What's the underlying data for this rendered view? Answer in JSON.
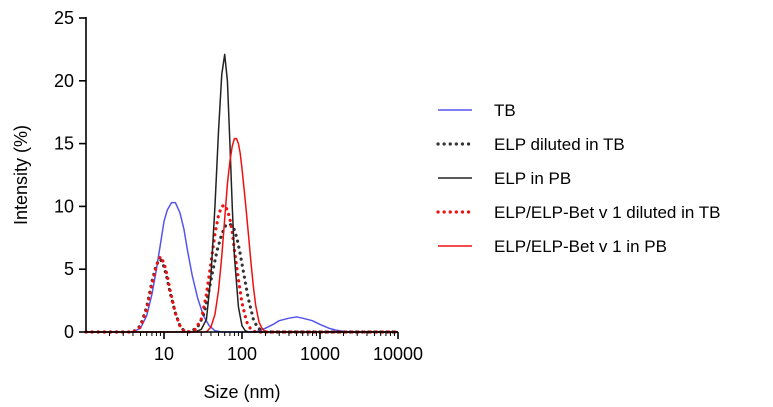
{
  "chart_data": {
    "type": "line",
    "xlabel": "Size (nm)",
    "ylabel": "Intensity (%)",
    "x_scale": "log",
    "xlim": [
      1,
      10000
    ],
    "ylim": [
      0,
      25
    ],
    "x_ticks": [
      10,
      100,
      1000,
      10000
    ],
    "x_tick_labels": [
      "10",
      "100",
      "1000",
      "10000"
    ],
    "y_ticks": [
      0,
      5,
      10,
      15,
      20,
      25
    ],
    "y_tick_labels": [
      "0",
      "5",
      "10",
      "15",
      "20",
      "25"
    ],
    "grid": false,
    "legend_position": "right",
    "series": [
      {
        "name": "TB",
        "color": "#5555ee",
        "style": "solid",
        "x": [
          1.0,
          4.0,
          5.0,
          6.0,
          7.0,
          8.0,
          9.0,
          10.0,
          11.0,
          12.5,
          14.0,
          16.0,
          18.0,
          20.0,
          23.0,
          27.0,
          32.0,
          38.0,
          45.0,
          55.0,
          100.0,
          150.0,
          200.0,
          250.0,
          300.0,
          400.0,
          500.0,
          600.0,
          800.0,
          1000.0,
          1300.0,
          1600.0,
          2000.0,
          2500.0,
          3500.0,
          10000.0
        ],
        "y": [
          0,
          0,
          0.3,
          1.3,
          3.0,
          5.0,
          7.0,
          8.8,
          9.7,
          10.3,
          10.3,
          9.5,
          8.2,
          6.5,
          4.5,
          2.7,
          1.3,
          0.5,
          0.1,
          0,
          0,
          0,
          0.3,
          0.6,
          0.9,
          1.1,
          1.2,
          1.1,
          0.9,
          0.6,
          0.3,
          0.15,
          0.05,
          0,
          0,
          0
        ]
      },
      {
        "name": "ELP diluted in TB",
        "color": "#333333",
        "style": "dotted",
        "x": [
          1.0,
          4.0,
          5.0,
          6.0,
          7.0,
          8.0,
          9.0,
          10.0,
          11.0,
          12.0,
          14.0,
          16.0,
          18.0,
          20.0,
          23.0,
          27.0,
          32.0,
          37.0,
          42.0,
          48.0,
          55.0,
          62.0,
          70.0,
          78.0,
          86.0,
          95.0,
          105.0,
          120.0,
          140.0,
          160.0,
          200.0,
          10000.0
        ],
        "y": [
          0,
          0,
          0.5,
          2.0,
          4.0,
          5.4,
          5.8,
          5.2,
          4.2,
          3.1,
          1.5,
          0.5,
          0.1,
          0,
          0.1,
          0.4,
          1.3,
          3.0,
          4.8,
          6.5,
          7.8,
          8.5,
          8.6,
          8.3,
          7.5,
          6.2,
          4.7,
          2.7,
          1.0,
          0.3,
          0,
          0
        ]
      },
      {
        "name": "ELP in PB",
        "color": "#222222",
        "style": "solid",
        "x": [
          1.0,
          25.0,
          30.0,
          35.0,
          40.0,
          45.0,
          50.0,
          55.0,
          60.0,
          65.0,
          70.0,
          75.0,
          80.0,
          90.0,
          100.0,
          110.0,
          120.0,
          10000.0
        ],
        "y": [
          0,
          0,
          0.2,
          1.0,
          4.5,
          10.0,
          16.0,
          20.5,
          22.1,
          20.0,
          15.0,
          10.0,
          6.0,
          2.0,
          0.5,
          0.1,
          0,
          0
        ]
      },
      {
        "name": "ELP/ELP-Bet v 1 diluted in TB",
        "color": "#ee1111",
        "style": "dotted",
        "x": [
          1.0,
          4.0,
          5.0,
          6.0,
          7.0,
          8.0,
          9.0,
          10.0,
          11.0,
          12.0,
          14.0,
          16.0,
          18.0,
          21.0,
          25.0,
          30.0,
          35.0,
          40.0,
          45.0,
          50.0,
          55.0,
          60.0,
          65.0,
          70.0,
          75.0,
          80.0,
          90.0,
          100.0,
          115.0,
          130.0,
          150.0,
          10000.0
        ],
        "y": [
          0,
          0,
          0.4,
          1.8,
          3.8,
          5.3,
          6.0,
          5.5,
          4.5,
          3.3,
          1.5,
          0.5,
          0.1,
          0,
          0.2,
          1.0,
          3.0,
          5.5,
          7.8,
          9.3,
          10.0,
          10.1,
          9.7,
          9.0,
          8.0,
          6.5,
          4.2,
          2.3,
          0.8,
          0.2,
          0,
          0
        ]
      },
      {
        "name": "ELP/ELP-Bet v 1 in PB",
        "color": "#ee1111",
        "style": "solid",
        "x": [
          1.0,
          35.0,
          40.0,
          45.0,
          50.0,
          55.0,
          60.0,
          65.0,
          70.0,
          75.0,
          80.0,
          85.0,
          90.0,
          95.0,
          100.0,
          110.0,
          120.0,
          130.0,
          140.0,
          150.0,
          165.0,
          180.0,
          200.0,
          10000.0
        ],
        "y": [
          0,
          0,
          0.4,
          1.4,
          3.3,
          6.0,
          9.0,
          11.8,
          13.6,
          14.8,
          15.4,
          15.4,
          15.0,
          14.2,
          13.0,
          10.5,
          8.0,
          5.6,
          3.6,
          2.1,
          0.8,
          0.3,
          0,
          0
        ]
      }
    ]
  }
}
